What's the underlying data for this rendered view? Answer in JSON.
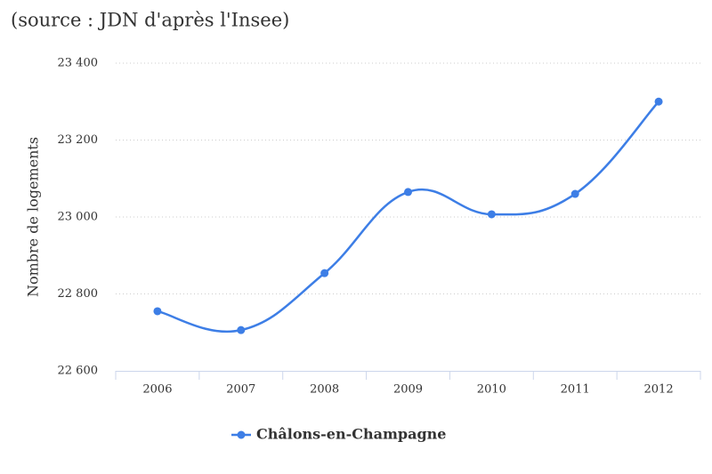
{
  "chart_data": {
    "type": "line",
    "title": "(source : JDN d'après l'Insee)",
    "y_label": "Nombre de logements",
    "categories": [
      "2006",
      "2007",
      "2008",
      "2009",
      "2010",
      "2011",
      "2012"
    ],
    "series": [
      {
        "name": "Châlons-en-Champagne",
        "color": "#3d7ee6",
        "values": [
          22755,
          22706,
          22854,
          23065,
          23007,
          23060,
          23300
        ]
      }
    ],
    "ylim": [
      22600,
      23400
    ],
    "yticks": [
      {
        "value": 22600,
        "label": "22 600"
      },
      {
        "value": 22800,
        "label": "22 800"
      },
      {
        "value": 23000,
        "label": "23 000"
      },
      {
        "value": 23200,
        "label": "23 200"
      },
      {
        "value": 23400,
        "label": "23 400"
      }
    ],
    "grid": true,
    "legend": "bottom"
  }
}
